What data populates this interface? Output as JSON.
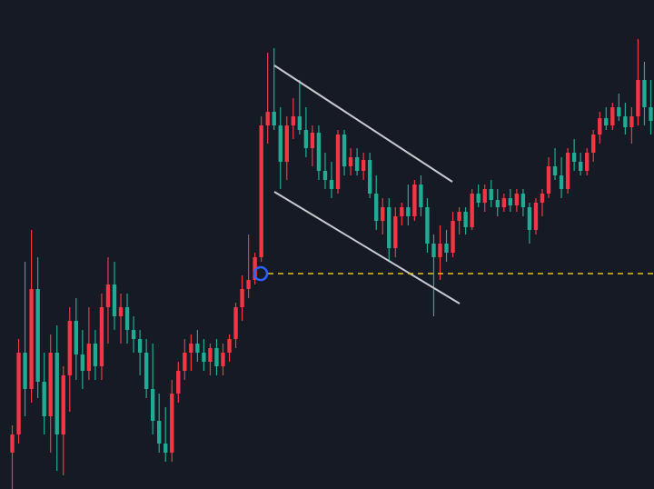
{
  "chart_data": {
    "type": "candlestick",
    "ylim": [
      0,
      538
    ],
    "up_color": "#f23645",
    "down_color": "#22ab94",
    "candles": [
      [
        40,
        70,
        0,
        60
      ],
      [
        60,
        165,
        50,
        150
      ],
      [
        150,
        250,
        80,
        110
      ],
      [
        110,
        285,
        95,
        220
      ],
      [
        220,
        255,
        100,
        118
      ],
      [
        118,
        150,
        60,
        80
      ],
      [
        80,
        170,
        40,
        150
      ],
      [
        150,
        180,
        20,
        60
      ],
      [
        60,
        135,
        15,
        125
      ],
      [
        125,
        200,
        85,
        185
      ],
      [
        185,
        210,
        120,
        148
      ],
      [
        148,
        175,
        110,
        130
      ],
      [
        130,
        200,
        120,
        160
      ],
      [
        160,
        175,
        120,
        135
      ],
      [
        135,
        215,
        120,
        200
      ],
      [
        200,
        255,
        160,
        225
      ],
      [
        225,
        250,
        175,
        190
      ],
      [
        190,
        215,
        160,
        200
      ],
      [
        200,
        215,
        160,
        175
      ],
      [
        175,
        190,
        150,
        165
      ],
      [
        165,
        175,
        125,
        150
      ],
      [
        150,
        165,
        100,
        110
      ],
      [
        110,
        160,
        60,
        75
      ],
      [
        75,
        105,
        40,
        50
      ],
      [
        50,
        90,
        30,
        40
      ],
      [
        40,
        120,
        30,
        105
      ],
      [
        105,
        140,
        95,
        130
      ],
      [
        130,
        165,
        120,
        150
      ],
      [
        150,
        170,
        130,
        160
      ],
      [
        160,
        175,
        140,
        150
      ],
      [
        150,
        165,
        130,
        140
      ],
      [
        140,
        160,
        125,
        155
      ],
      [
        155,
        165,
        125,
        135
      ],
      [
        135,
        160,
        125,
        150
      ],
      [
        150,
        170,
        140,
        165
      ],
      [
        165,
        205,
        155,
        200
      ],
      [
        200,
        235,
        185,
        220
      ],
      [
        220,
        280,
        210,
        230
      ],
      [
        230,
        260,
        225,
        255
      ],
      [
        255,
        410,
        250,
        400
      ],
      [
        400,
        480,
        380,
        415
      ],
      [
        415,
        485,
        395,
        400
      ],
      [
        400,
        420,
        330,
        360
      ],
      [
        360,
        410,
        340,
        400
      ],
      [
        400,
        430,
        385,
        410
      ],
      [
        410,
        450,
        390,
        395
      ],
      [
        395,
        420,
        365,
        375
      ],
      [
        375,
        400,
        355,
        392
      ],
      [
        392,
        400,
        340,
        350
      ],
      [
        350,
        370,
        330,
        340
      ],
      [
        340,
        360,
        320,
        330
      ],
      [
        330,
        395,
        325,
        390
      ],
      [
        390,
        395,
        345,
        355
      ],
      [
        355,
        375,
        345,
        365
      ],
      [
        365,
        375,
        345,
        350
      ],
      [
        350,
        370,
        340,
        362
      ],
      [
        362,
        370,
        320,
        325
      ],
      [
        325,
        345,
        285,
        295
      ],
      [
        295,
        320,
        280,
        310
      ],
      [
        310,
        320,
        250,
        265
      ],
      [
        265,
        310,
        255,
        300
      ],
      [
        300,
        315,
        290,
        310
      ],
      [
        310,
        335,
        290,
        300
      ],
      [
        300,
        340,
        295,
        335
      ],
      [
        335,
        345,
        300,
        310
      ],
      [
        310,
        320,
        260,
        270
      ],
      [
        270,
        280,
        190,
        255
      ],
      [
        255,
        290,
        230,
        270
      ],
      [
        270,
        285,
        250,
        260
      ],
      [
        260,
        305,
        255,
        295
      ],
      [
        295,
        310,
        280,
        305
      ],
      [
        305,
        310,
        280,
        288
      ],
      [
        288,
        330,
        285,
        325
      ],
      [
        325,
        335,
        310,
        315
      ],
      [
        315,
        335,
        305,
        330
      ],
      [
        330,
        340,
        310,
        318
      ],
      [
        318,
        330,
        300,
        310
      ],
      [
        310,
        325,
        305,
        320
      ],
      [
        320,
        330,
        305,
        312
      ],
      [
        312,
        330,
        305,
        325
      ],
      [
        325,
        330,
        300,
        310
      ],
      [
        310,
        315,
        270,
        285
      ],
      [
        285,
        320,
        280,
        315
      ],
      [
        315,
        330,
        300,
        325
      ],
      [
        325,
        365,
        320,
        355
      ],
      [
        355,
        375,
        340,
        345
      ],
      [
        345,
        365,
        320,
        330
      ],
      [
        330,
        375,
        325,
        370
      ],
      [
        370,
        385,
        350,
        360
      ],
      [
        360,
        370,
        345,
        350
      ],
      [
        350,
        375,
        345,
        370
      ],
      [
        370,
        395,
        360,
        390
      ],
      [
        390,
        415,
        380,
        408
      ],
      [
        408,
        420,
        395,
        400
      ],
      [
        400,
        425,
        395,
        420
      ],
      [
        420,
        435,
        405,
        410
      ],
      [
        410,
        425,
        390,
        398
      ],
      [
        398,
        420,
        380,
        410
      ],
      [
        410,
        495,
        400,
        450
      ],
      [
        450,
        470,
        400,
        420
      ],
      [
        420,
        450,
        390,
        405
      ]
    ]
  }
}
